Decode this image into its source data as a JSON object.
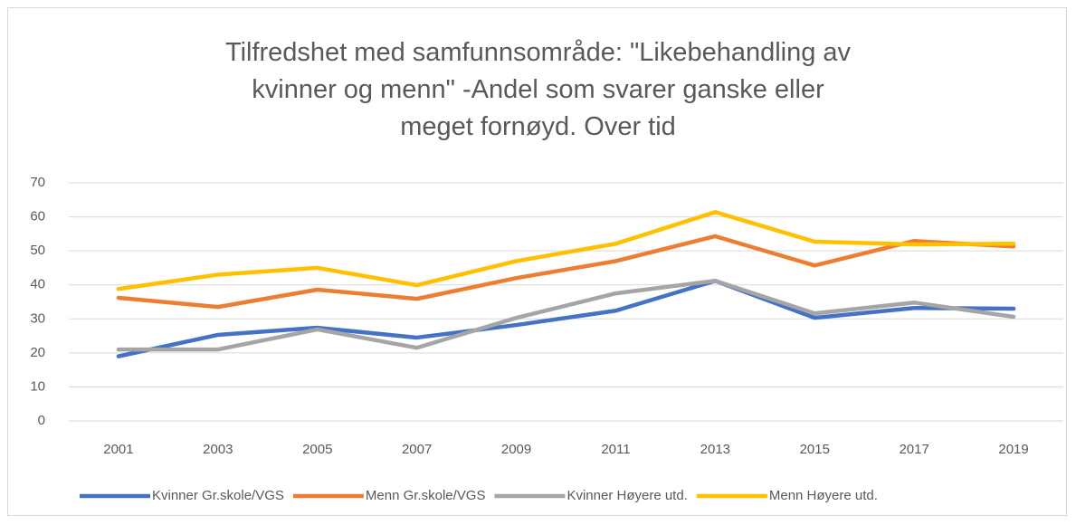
{
  "chart_data": {
    "type": "line",
    "title": "Tilfredshet med samfunnsområde: \"Likebehandling av kvinner og menn\" -Andel som svarer ganske eller meget fornøyd. Over tid",
    "categories": [
      "2001",
      "2003",
      "2005",
      "2007",
      "2009",
      "2011",
      "2013",
      "2015",
      "2017",
      "2019"
    ],
    "series": [
      {
        "name": "Kvinner Gr.skole/VGS",
        "color": "#4472c4",
        "values": [
          19,
          25.3,
          27.4,
          24.5,
          28.2,
          32.4,
          41.2,
          30.3,
          33.2,
          33
        ]
      },
      {
        "name": "Menn Gr.skole/VGS",
        "color": "#ed7d31",
        "values": [
          36.2,
          33.5,
          38.6,
          35.9,
          42,
          47,
          54.3,
          45.7,
          52.9,
          51.3
        ]
      },
      {
        "name": "Kvinner Høyere utd.",
        "color": "#a5a5a5",
        "values": [
          21,
          21,
          26.9,
          21.5,
          30.3,
          37.5,
          41.2,
          31.6,
          34.8,
          30.6
        ]
      },
      {
        "name": "Menn Høyere utd.",
        "color": "#ffc000",
        "values": [
          38.8,
          43,
          45,
          39.9,
          47,
          52.1,
          61.4,
          52.7,
          51.9,
          52.1
        ]
      }
    ],
    "ylim": [
      0,
      70
    ],
    "yticks": [
      0,
      10,
      20,
      30,
      40,
      50,
      60,
      70
    ],
    "grid": true,
    "legend": "bottom"
  }
}
